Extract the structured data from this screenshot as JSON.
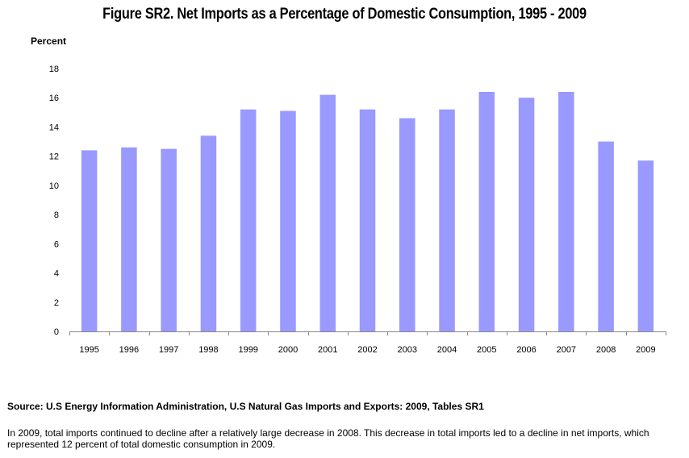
{
  "chart_data": {
    "type": "bar",
    "title": "Figure SR2. Net Imports as a Percentage of Domestic Consumption, 1995 - 2009",
    "ylabel": "Percent",
    "xlabel": "",
    "categories": [
      "1995",
      "1996",
      "1997",
      "1998",
      "1999",
      "2000",
      "2001",
      "2002",
      "2003",
      "2004",
      "2005",
      "2006",
      "2007",
      "2008",
      "2009"
    ],
    "values": [
      12.4,
      12.6,
      12.5,
      13.4,
      15.2,
      15.1,
      16.2,
      15.2,
      14.6,
      15.2,
      16.4,
      16.0,
      16.4,
      13.0,
      11.7
    ],
    "ylim": [
      0,
      18
    ],
    "yticks": [
      0,
      2,
      4,
      6,
      8,
      10,
      12,
      14,
      16,
      18
    ],
    "grid": false,
    "bar_color": "#9999ff"
  },
  "source": "Source: U.S Energy Information Administration, U.S Natural Gas  Imports and Exports: 2009, Tables SR1",
  "note": "In 2009, total imports continued to decline after a relatively large decrease in 2008. This decrease in total imports led to a decline in net imports, which represented 12 percent of total domestic consumption in 2009."
}
